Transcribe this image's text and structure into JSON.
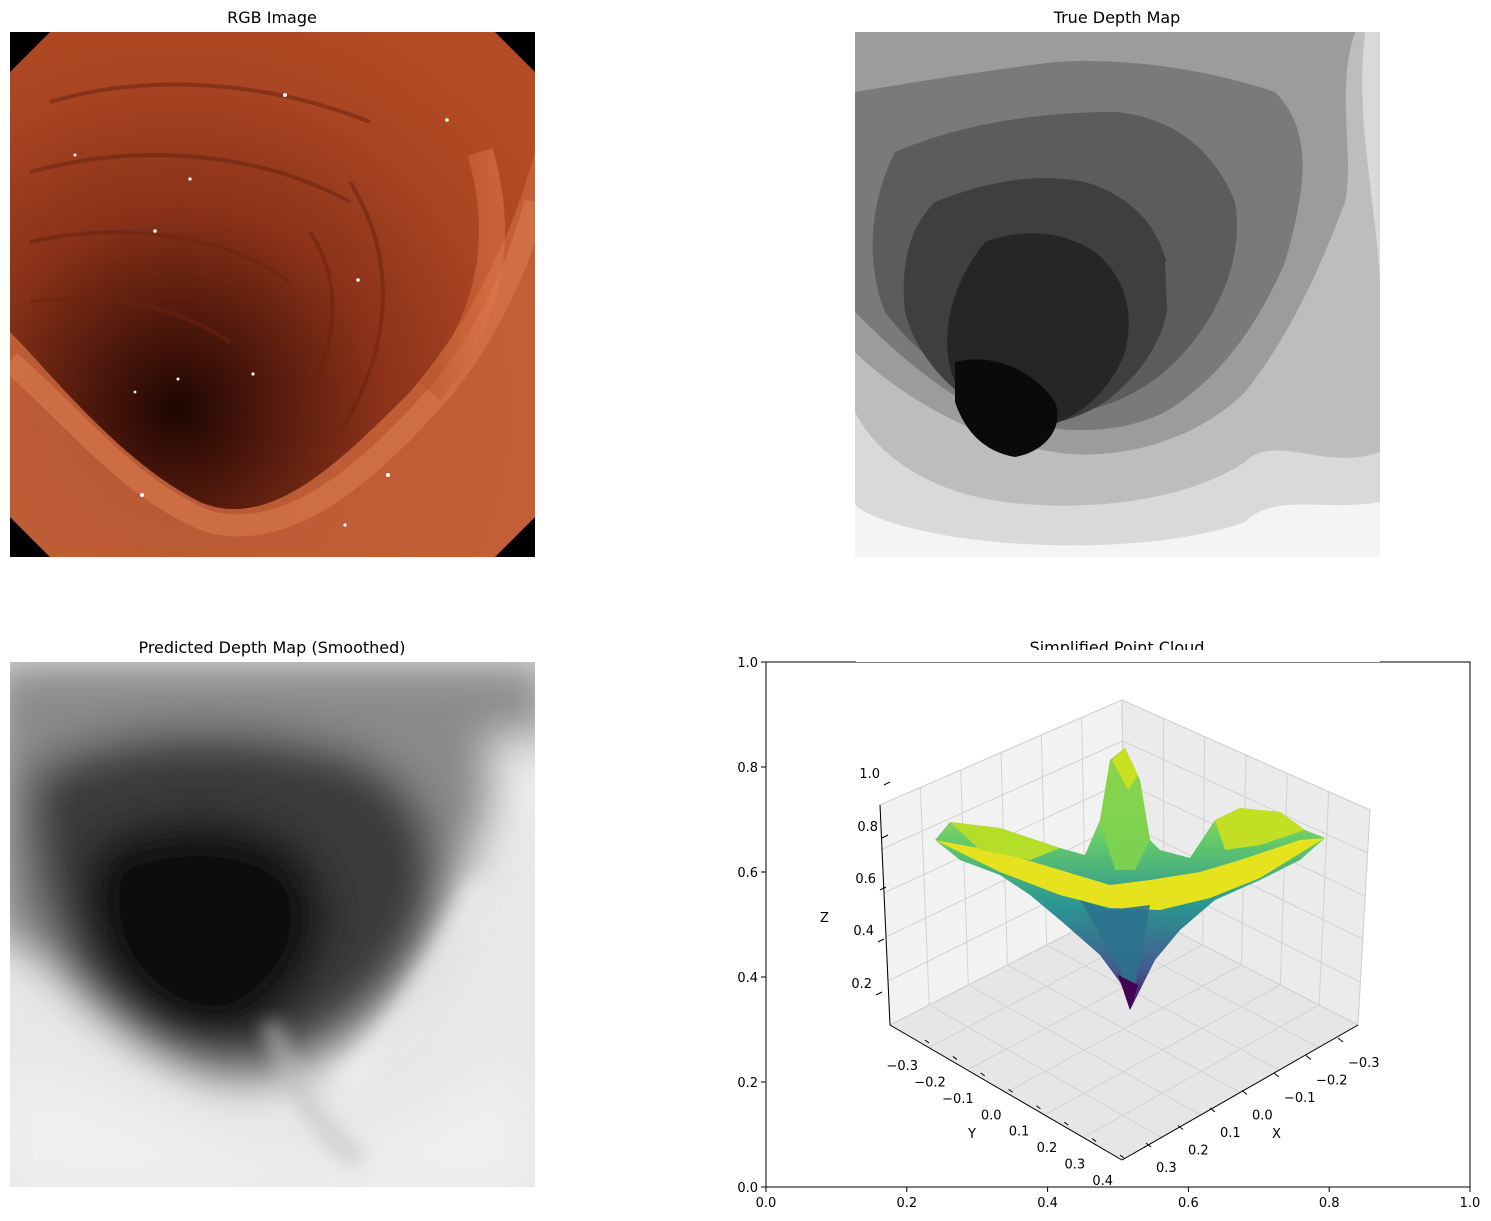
{
  "panels": {
    "rgb": {
      "title": "RGB Image"
    },
    "true_depth": {
      "title": "True Depth Map"
    },
    "pred_depth": {
      "title": "Predicted Depth Map (Smoothed)"
    },
    "cloud": {
      "title": "Simplified Point Cloud"
    }
  },
  "chart_data": [
    {
      "type": "image",
      "title": "RGB Image",
      "description_colors": {
        "tissue": "#b5522a",
        "shadow": "#3a120a",
        "background": "#000000"
      }
    },
    {
      "type": "heatmap",
      "title": "True Depth Map",
      "colormap": "gray"
    },
    {
      "type": "heatmap",
      "title": "Predicted Depth Map (Smoothed)",
      "colormap": "gray"
    },
    {
      "type": "scatter3d",
      "title": "Simplified Point Cloud",
      "colormap": "viridis",
      "outer_axes": {
        "x_ticks": [
          "0.0",
          "0.2",
          "0.4",
          "0.6",
          "0.8",
          "1.0"
        ],
        "y_ticks": [
          "0.0",
          "0.2",
          "0.4",
          "0.6",
          "0.8",
          "1.0"
        ],
        "xlim": [
          0,
          1
        ],
        "ylim": [
          0,
          1
        ]
      },
      "x_axis": {
        "label": "X",
        "ticks": [
          "−0.3",
          "−0.2",
          "−0.1",
          "0.0",
          "0.1",
          "0.2",
          "0.3"
        ]
      },
      "y_axis": {
        "label": "Y",
        "ticks": [
          "−0.3",
          "−0.2",
          "−0.1",
          "0.0",
          "0.1",
          "0.2",
          "0.3",
          "0.4"
        ]
      },
      "z_axis": {
        "label": "Z",
        "ticks": [
          "0.2",
          "0.4",
          "0.6",
          "0.8",
          "1.0"
        ]
      },
      "grid": true
    }
  ]
}
